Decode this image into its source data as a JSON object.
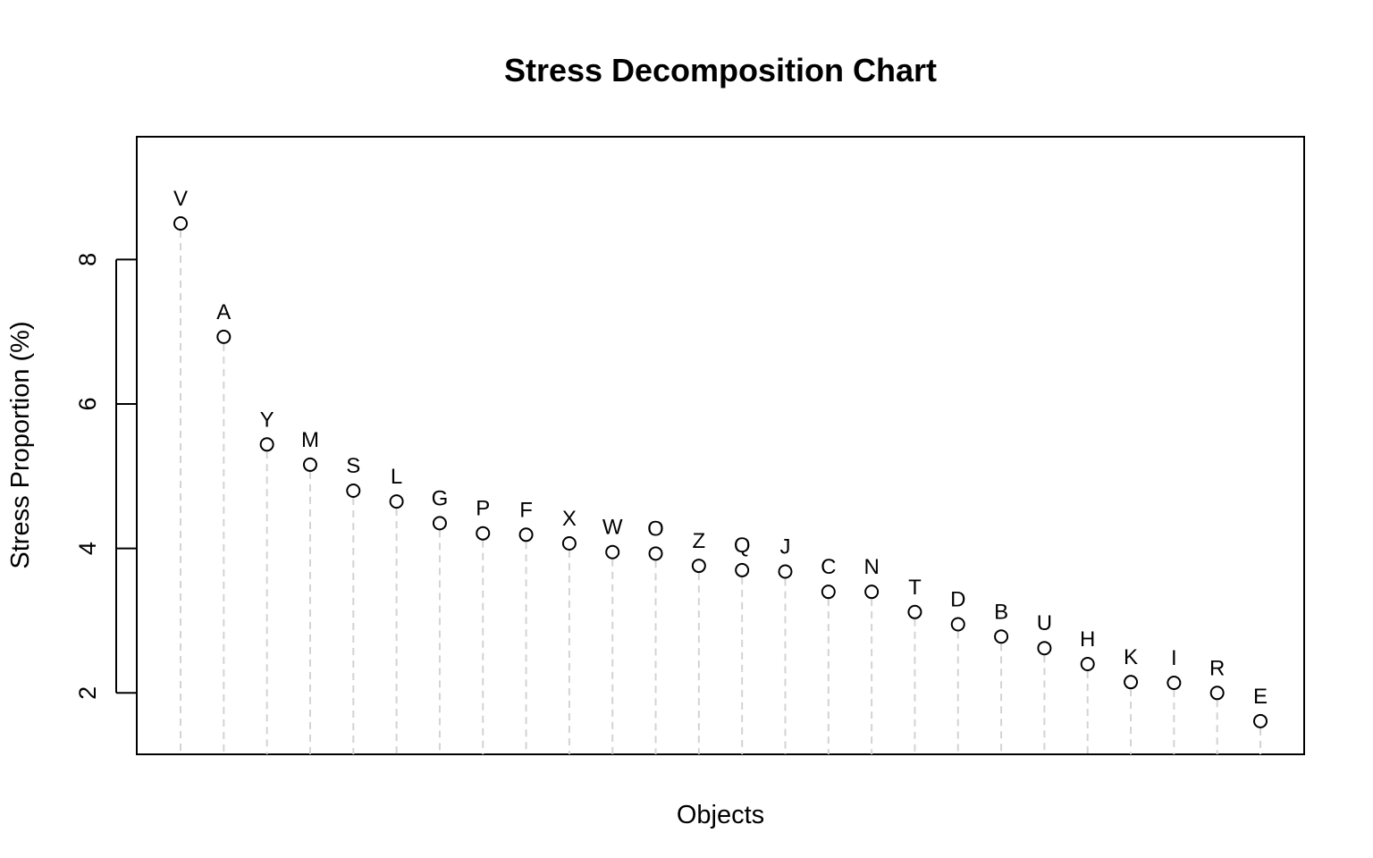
{
  "chart_data": {
    "type": "scatter",
    "title": "Stress Decomposition Chart",
    "xlabel": "Objects",
    "ylabel": "Stress Proportion (%)",
    "ylim": [
      1.15,
      9.7
    ],
    "yticks": [
      2,
      4,
      6,
      8
    ],
    "grid": false,
    "legend": "none",
    "point_style": "open-circle",
    "drop_line_color": "#d3d3d3",
    "categories": [
      "V",
      "A",
      "Y",
      "M",
      "S",
      "L",
      "G",
      "P",
      "F",
      "X",
      "W",
      "O",
      "Z",
      "Q",
      "J",
      "C",
      "N",
      "T",
      "D",
      "B",
      "U",
      "H",
      "K",
      "I",
      "R",
      "E"
    ],
    "values": [
      8.5,
      6.93,
      5.44,
      5.16,
      4.8,
      4.65,
      4.35,
      4.21,
      4.19,
      4.07,
      3.95,
      3.93,
      3.76,
      3.7,
      3.68,
      3.4,
      3.4,
      3.12,
      2.95,
      2.78,
      2.62,
      2.4,
      2.15,
      2.14,
      2.0,
      1.61
    ]
  }
}
